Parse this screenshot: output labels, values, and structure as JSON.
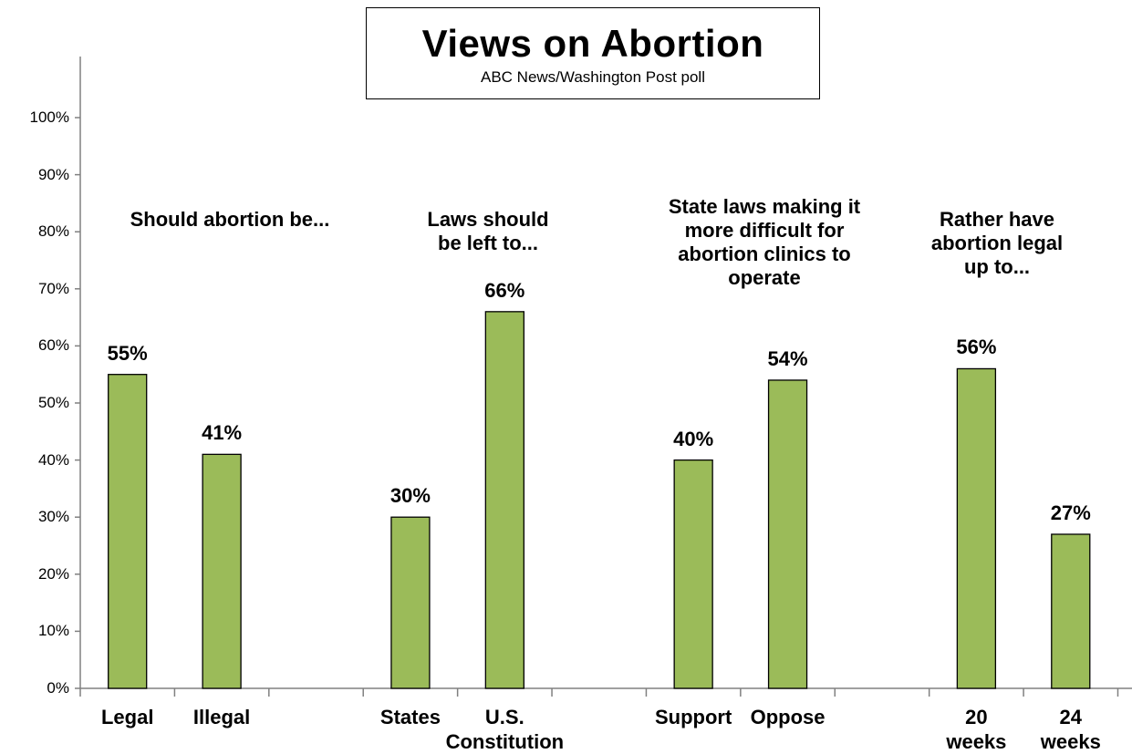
{
  "chart_data": {
    "type": "bar",
    "title": "Views on Abortion",
    "subtitle": "ABC News/Washington Post poll",
    "xlabel": "",
    "ylabel": "",
    "ylim": [
      0,
      100
    ],
    "y_ticks": [
      "0%",
      "10%",
      "20%",
      "30%",
      "40%",
      "50%",
      "60%",
      "70%",
      "80%",
      "90%",
      "100%"
    ],
    "bar_color": "#9bbb59",
    "grid": false,
    "legend": "none",
    "groups": [
      {
        "label": "Should abortion be...",
        "bars": [
          {
            "category": "Legal",
            "value": 55,
            "value_label": "55%"
          },
          {
            "category": "Illegal",
            "value": 41,
            "value_label": "41%"
          }
        ]
      },
      {
        "label": "Laws should\nbe left to...",
        "bars": [
          {
            "category": "States",
            "value": 30,
            "value_label": "30%"
          },
          {
            "category": "U.S.\nConstitution",
            "value": 66,
            "value_label": "66%"
          }
        ]
      },
      {
        "label": "State laws making it\nmore difficult for\nabortion clinics to\noperate",
        "bars": [
          {
            "category": "Support",
            "value": 40,
            "value_label": "40%"
          },
          {
            "category": "Oppose",
            "value": 54,
            "value_label": "54%"
          }
        ]
      },
      {
        "label": "Rather have\nabortion legal\nup to...",
        "bars": [
          {
            "category": "20\nweeks",
            "value": 56,
            "value_label": "56%"
          },
          {
            "category": "24\nweeks",
            "value": 27,
            "value_label": "27%"
          }
        ]
      }
    ]
  }
}
